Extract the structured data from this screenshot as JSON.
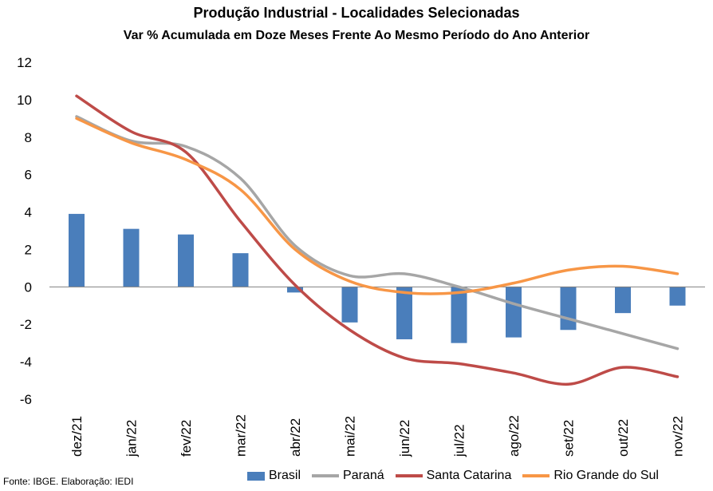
{
  "header": {
    "title": "Produção Industrial - Localidades Selecionadas",
    "subtitle": "Var % Acumulada em Doze Meses Frente Ao Mesmo Período do Ano Anterior"
  },
  "footer": {
    "source": "Fonte: IBGE. Elaboração: IEDI"
  },
  "legend": {
    "items": [
      {
        "label": "Brasil",
        "kind": "bar",
        "color": "#4a7ebb"
      },
      {
        "label": "Paraná",
        "kind": "line",
        "color": "#a6a6a6"
      },
      {
        "label": "Santa Catarina",
        "kind": "line",
        "color": "#be4b48"
      },
      {
        "label": "Rio Grande do Sul",
        "kind": "line",
        "color": "#f79646"
      }
    ]
  },
  "chart_data": {
    "type": "bar",
    "title": "Produção Industrial - Localidades Selecionadas",
    "subtitle": "Var % Acumulada em Doze Meses Frente Ao Mesmo Período do Ano Anterior",
    "categories": [
      "dez/21",
      "jan/22",
      "fev/22",
      "mar/22",
      "abr/22",
      "mai/22",
      "jun/22",
      "jul/22",
      "ago/22",
      "set/22",
      "out/22",
      "nov/22"
    ],
    "ylim": [
      -6,
      12
    ],
    "yticks": [
      -6,
      -4,
      -2,
      0,
      2,
      4,
      6,
      8,
      10,
      12
    ],
    "grid": false,
    "legend_position": "bottom",
    "series": [
      {
        "name": "Brasil",
        "type": "bar",
        "color": "#4a7ebb",
        "values": [
          3.9,
          3.1,
          2.8,
          1.8,
          -0.3,
          -1.9,
          -2.8,
          -3.0,
          -2.7,
          -2.3,
          -1.4,
          -1.0
        ]
      },
      {
        "name": "Paraná",
        "type": "line",
        "color": "#a6a6a6",
        "values": [
          9.1,
          7.8,
          7.5,
          5.8,
          2.2,
          0.6,
          0.7,
          0.0,
          -0.9,
          -1.7,
          -2.5,
          -3.3
        ]
      },
      {
        "name": "Santa Catarina",
        "type": "line",
        "color": "#be4b48",
        "values": [
          10.2,
          8.3,
          7.2,
          3.5,
          0.1,
          -2.3,
          -3.8,
          -4.1,
          -4.6,
          -5.2,
          -4.3,
          -4.8
        ]
      },
      {
        "name": "Rio Grande do Sul",
        "type": "line",
        "color": "#f79646",
        "values": [
          9.0,
          7.7,
          6.8,
          5.2,
          2.0,
          0.3,
          -0.3,
          -0.3,
          0.2,
          0.9,
          1.1,
          0.7
        ]
      }
    ]
  }
}
